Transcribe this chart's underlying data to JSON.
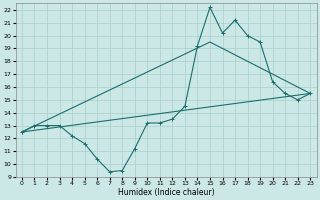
{
  "background_color": "#cce8e6",
  "grid_color": "#aacfcc",
  "line_color": "#1a6e6e",
  "xlabel": "Humidex (Indice chaleur)",
  "xlim": [
    -0.5,
    23.5
  ],
  "ylim": [
    9,
    22.5
  ],
  "yticks": [
    9,
    10,
    11,
    12,
    13,
    14,
    15,
    16,
    17,
    18,
    19,
    20,
    21,
    22
  ],
  "xticks": [
    0,
    1,
    2,
    3,
    4,
    5,
    6,
    7,
    8,
    9,
    10,
    11,
    12,
    13,
    14,
    15,
    16,
    17,
    18,
    19,
    20,
    21,
    22,
    23
  ],
  "curve_x": [
    0,
    1,
    2,
    3,
    4,
    5,
    6,
    7,
    8,
    9,
    10,
    11,
    12,
    13,
    14,
    15,
    16,
    17,
    18,
    19,
    20,
    21,
    22,
    23
  ],
  "curve_y": [
    12.5,
    13.0,
    13.0,
    13.0,
    12.2,
    11.6,
    10.4,
    9.4,
    9.5,
    11.2,
    13.2,
    13.2,
    13.5,
    14.5,
    19.2,
    22.2,
    20.2,
    21.2,
    20.0,
    19.5,
    16.4,
    15.5,
    15.0,
    15.5
  ],
  "line1_x": [
    0,
    23
  ],
  "line1_y": [
    12.5,
    15.5
  ],
  "line2_x": [
    0,
    15,
    23
  ],
  "line2_y": [
    12.5,
    19.5,
    15.5
  ]
}
